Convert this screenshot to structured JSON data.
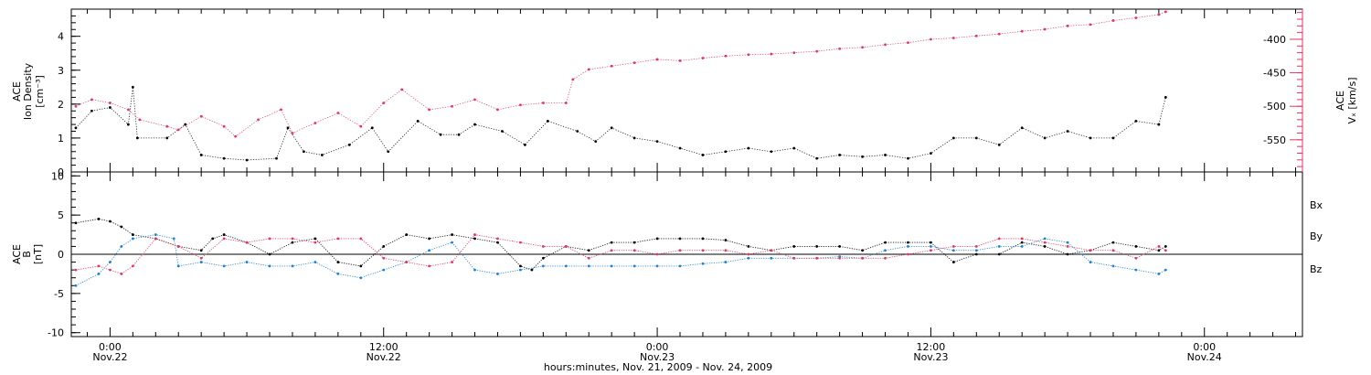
{
  "colors": {
    "black": "#000000",
    "pink": "#e8335f",
    "blue": "#1e7fd6"
  },
  "footer": {
    "xlabel": "hours:minutes, Nov. 21, 2009 - Nov. 24, 2009"
  },
  "x_ticks": [
    {
      "time": "0:00",
      "date": "Nov.22",
      "hour": 0
    },
    {
      "time": "12:00",
      "date": "Nov.22",
      "hour": 12
    },
    {
      "time": "0:00",
      "date": "Nov.23",
      "hour": 24
    },
    {
      "time": "12:00",
      "date": "Nov.23",
      "hour": 36
    },
    {
      "time": "0:00",
      "date": "Nov.24",
      "hour": 48
    }
  ],
  "chart_data": [
    {
      "type": "scatter",
      "panel": "top",
      "xlim_hours": [
        -1.7,
        52.3
      ],
      "left_axis": {
        "label": [
          "ACE",
          "Ion Density",
          "[cm⁻³]"
        ],
        "ylim": [
          0,
          4.8
        ],
        "ticks": [
          0,
          1,
          2,
          3,
          4
        ]
      },
      "right_axis": {
        "label": [
          "ACE",
          "Vₓ [km/s]"
        ],
        "ylim": [
          -598,
          -355
        ],
        "ticks": [
          -400,
          -450,
          -500,
          -550
        ],
        "color": "#e8335f"
      },
      "series": [
        {
          "color": "#000000",
          "axis": "left",
          "points": [
            [
              -1.5,
              1.3
            ],
            [
              -0.8,
              1.8
            ],
            [
              0.0,
              1.9
            ],
            [
              0.8,
              1.4
            ],
            [
              1.0,
              2.5
            ],
            [
              1.2,
              1.0
            ],
            [
              2.5,
              1.0
            ],
            [
              3.3,
              1.4
            ],
            [
              4.0,
              0.5
            ],
            [
              5.0,
              0.4
            ],
            [
              6.0,
              0.35
            ],
            [
              7.3,
              0.4
            ],
            [
              7.8,
              1.3
            ],
            [
              8.5,
              0.6
            ],
            [
              9.3,
              0.5
            ],
            [
              10.5,
              0.8
            ],
            [
              11.5,
              1.3
            ],
            [
              12.2,
              0.6
            ],
            [
              13.5,
              1.5
            ],
            [
              14.5,
              1.1
            ],
            [
              15.3,
              1.1
            ],
            [
              16.0,
              1.4
            ],
            [
              17.2,
              1.2
            ],
            [
              18.2,
              0.8
            ],
            [
              19.2,
              1.5
            ],
            [
              20.5,
              1.2
            ],
            [
              21.3,
              0.9
            ],
            [
              22.0,
              1.3
            ],
            [
              23.0,
              1.0
            ],
            [
              24.0,
              0.9
            ],
            [
              25.0,
              0.7
            ],
            [
              26.0,
              0.5
            ],
            [
              27.0,
              0.6
            ],
            [
              28.0,
              0.7
            ],
            [
              29.0,
              0.6
            ],
            [
              30.0,
              0.7
            ],
            [
              31.0,
              0.4
            ],
            [
              32.0,
              0.5
            ],
            [
              33.0,
              0.45
            ],
            [
              34.0,
              0.5
            ],
            [
              35.0,
              0.4
            ],
            [
              36.0,
              0.55
            ],
            [
              37.0,
              1.0
            ],
            [
              38.0,
              1.0
            ],
            [
              39.0,
              0.8
            ],
            [
              40.0,
              1.3
            ],
            [
              41.0,
              1.0
            ],
            [
              42.0,
              1.2
            ],
            [
              43.0,
              1.0
            ],
            [
              44.0,
              1.0
            ],
            [
              45.0,
              1.5
            ],
            [
              46.0,
              1.4
            ],
            [
              46.3,
              2.2
            ]
          ]
        },
        {
          "color": "#e8335f",
          "axis": "right",
          "points": [
            [
              -1.5,
              -500
            ],
            [
              -0.8,
              -490
            ],
            [
              0.0,
              -495
            ],
            [
              0.8,
              -505
            ],
            [
              1.3,
              -520
            ],
            [
              2.5,
              -530
            ],
            [
              3.0,
              -535
            ],
            [
              4.0,
              -515
            ],
            [
              5.0,
              -530
            ],
            [
              5.5,
              -545
            ],
            [
              6.5,
              -520
            ],
            [
              7.5,
              -505
            ],
            [
              8.0,
              -540
            ],
            [
              9.0,
              -525
            ],
            [
              10.0,
              -510
            ],
            [
              11.0,
              -530
            ],
            [
              12.0,
              -495
            ],
            [
              12.8,
              -475
            ],
            [
              14.0,
              -505
            ],
            [
              15.0,
              -500
            ],
            [
              16.0,
              -490
            ],
            [
              17.0,
              -505
            ],
            [
              18.0,
              -498
            ],
            [
              19.0,
              -495
            ],
            [
              20.0,
              -495
            ],
            [
              20.3,
              -460
            ],
            [
              21.0,
              -445
            ],
            [
              22.0,
              -440
            ],
            [
              23.0,
              -435
            ],
            [
              24.0,
              -430
            ],
            [
              25.0,
              -432
            ],
            [
              26.0,
              -428
            ],
            [
              27.0,
              -425
            ],
            [
              28.0,
              -423
            ],
            [
              29.0,
              -422
            ],
            [
              30.0,
              -420
            ],
            [
              31.0,
              -418
            ],
            [
              32.0,
              -414
            ],
            [
              33.0,
              -412
            ],
            [
              34.0,
              -408
            ],
            [
              35.0,
              -405
            ],
            [
              36.0,
              -400
            ],
            [
              37.0,
              -398
            ],
            [
              38.0,
              -395
            ],
            [
              39.0,
              -392
            ],
            [
              40.0,
              -388
            ],
            [
              41.0,
              -385
            ],
            [
              42.0,
              -380
            ],
            [
              43.0,
              -378
            ],
            [
              44.0,
              -372
            ],
            [
              45.0,
              -368
            ],
            [
              46.0,
              -363
            ],
            [
              46.3,
              -359
            ]
          ]
        }
      ]
    },
    {
      "type": "scatter",
      "panel": "bottom",
      "xlim_hours": [
        -1.7,
        52.3
      ],
      "left_axis": {
        "label": [
          "ACE",
          "B",
          "[nT]"
        ],
        "ylim": [
          -10.5,
          10.5
        ],
        "ticks": [
          -10,
          -5,
          0,
          5,
          10
        ]
      },
      "zero_line": true,
      "legend_position": "right",
      "series": [
        {
          "name": "Bx",
          "color": "#000000",
          "points": [
            [
              -1.5,
              4.0
            ],
            [
              -0.5,
              4.5
            ],
            [
              0.0,
              4.2
            ],
            [
              0.5,
              3.5
            ],
            [
              1.0,
              2.5
            ],
            [
              2.0,
              2.0
            ],
            [
              3.0,
              1.0
            ],
            [
              4.0,
              0.5
            ],
            [
              4.5,
              2.0
            ],
            [
              5.0,
              2.5
            ],
            [
              6.0,
              1.5
            ],
            [
              7.0,
              0.0
            ],
            [
              8.0,
              1.5
            ],
            [
              9.0,
              2.0
            ],
            [
              10.0,
              -1.0
            ],
            [
              11.0,
              -1.5
            ],
            [
              12.0,
              1.0
            ],
            [
              13.0,
              2.5
            ],
            [
              14.0,
              2.0
            ],
            [
              15.0,
              2.5
            ],
            [
              16.0,
              2.0
            ],
            [
              17.0,
              1.5
            ],
            [
              18.0,
              -1.5
            ],
            [
              18.5,
              -2.0
            ],
            [
              19.0,
              -0.5
            ],
            [
              20.0,
              1.0
            ],
            [
              21.0,
              0.5
            ],
            [
              22.0,
              1.5
            ],
            [
              23.0,
              1.5
            ],
            [
              24.0,
              2.0
            ],
            [
              25.0,
              2.0
            ],
            [
              26.0,
              2.0
            ],
            [
              27.0,
              1.8
            ],
            [
              28.0,
              1.0
            ],
            [
              29.0,
              0.5
            ],
            [
              30.0,
              1.0
            ],
            [
              31.0,
              1.0
            ],
            [
              32.0,
              1.0
            ],
            [
              33.0,
              0.5
            ],
            [
              34.0,
              1.5
            ],
            [
              35.0,
              1.5
            ],
            [
              36.0,
              1.5
            ],
            [
              37.0,
              -1.0
            ],
            [
              38.0,
              0.0
            ],
            [
              39.0,
              0.0
            ],
            [
              40.0,
              1.5
            ],
            [
              41.0,
              1.0
            ],
            [
              42.0,
              0.0
            ],
            [
              43.0,
              0.5
            ],
            [
              44.0,
              1.5
            ],
            [
              45.0,
              1.0
            ],
            [
              46.0,
              0.5
            ],
            [
              46.3,
              1.0
            ]
          ]
        },
        {
          "name": "By",
          "color": "#1e7fd6",
          "points": [
            [
              -1.5,
              -4.0
            ],
            [
              -0.5,
              -2.5
            ],
            [
              0.0,
              -1.0
            ],
            [
              0.5,
              1.0
            ],
            [
              1.0,
              2.0
            ],
            [
              2.0,
              2.5
            ],
            [
              2.8,
              2.0
            ],
            [
              3.0,
              -1.5
            ],
            [
              4.0,
              -1.0
            ],
            [
              5.0,
              -1.5
            ],
            [
              6.0,
              -1.0
            ],
            [
              7.0,
              -1.5
            ],
            [
              8.0,
              -1.5
            ],
            [
              9.0,
              -1.0
            ],
            [
              10.0,
              -2.5
            ],
            [
              11.0,
              -3.0
            ],
            [
              12.0,
              -2.0
            ],
            [
              13.0,
              -1.0
            ],
            [
              14.0,
              0.5
            ],
            [
              15.0,
              1.5
            ],
            [
              16.0,
              -2.0
            ],
            [
              17.0,
              -2.5
            ],
            [
              18.0,
              -2.0
            ],
            [
              19.0,
              -1.5
            ],
            [
              20.0,
              -1.5
            ],
            [
              21.0,
              -1.5
            ],
            [
              22.0,
              -1.5
            ],
            [
              23.0,
              -1.5
            ],
            [
              24.0,
              -1.5
            ],
            [
              25.0,
              -1.5
            ],
            [
              26.0,
              -1.2
            ],
            [
              27.0,
              -1.0
            ],
            [
              28.0,
              -0.5
            ],
            [
              29.0,
              -0.5
            ],
            [
              30.0,
              -0.5
            ],
            [
              31.0,
              -0.5
            ],
            [
              32.0,
              -0.3
            ],
            [
              33.0,
              -0.5
            ],
            [
              34.0,
              0.5
            ],
            [
              35.0,
              1.0
            ],
            [
              36.0,
              1.0
            ],
            [
              37.0,
              0.5
            ],
            [
              38.0,
              0.5
            ],
            [
              39.0,
              1.0
            ],
            [
              40.0,
              1.0
            ],
            [
              41.0,
              2.0
            ],
            [
              42.0,
              1.5
            ],
            [
              43.0,
              -1.0
            ],
            [
              44.0,
              -1.5
            ],
            [
              45.0,
              -2.0
            ],
            [
              46.0,
              -2.5
            ],
            [
              46.3,
              -2.0
            ]
          ]
        },
        {
          "name": "Bz",
          "color": "#e8335f",
          "points": [
            [
              -1.5,
              -2.0
            ],
            [
              -0.5,
              -1.5
            ],
            [
              0.0,
              -2.0
            ],
            [
              0.5,
              -2.5
            ],
            [
              1.0,
              -1.5
            ],
            [
              2.0,
              2.0
            ],
            [
              3.0,
              1.0
            ],
            [
              4.0,
              -0.5
            ],
            [
              5.0,
              2.0
            ],
            [
              6.0,
              1.5
            ],
            [
              7.0,
              2.0
            ],
            [
              8.0,
              2.0
            ],
            [
              9.0,
              1.5
            ],
            [
              10.0,
              2.0
            ],
            [
              11.0,
              2.0
            ],
            [
              12.0,
              -0.5
            ],
            [
              13.0,
              -1.0
            ],
            [
              14.0,
              -1.5
            ],
            [
              15.0,
              -1.0
            ],
            [
              16.0,
              2.5
            ],
            [
              17.0,
              2.0
            ],
            [
              18.0,
              1.5
            ],
            [
              19.0,
              1.0
            ],
            [
              20.0,
              1.0
            ],
            [
              21.0,
              -0.5
            ],
            [
              22.0,
              0.5
            ],
            [
              23.0,
              0.5
            ],
            [
              24.0,
              0.0
            ],
            [
              25.0,
              0.5
            ],
            [
              26.0,
              0.5
            ],
            [
              27.0,
              0.5
            ],
            [
              28.0,
              0.0
            ],
            [
              29.0,
              0.5
            ],
            [
              30.0,
              -0.5
            ],
            [
              31.0,
              -0.5
            ],
            [
              32.0,
              -0.5
            ],
            [
              33.0,
              -0.5
            ],
            [
              34.0,
              -0.5
            ],
            [
              35.0,
              0.0
            ],
            [
              36.0,
              0.5
            ],
            [
              37.0,
              1.0
            ],
            [
              38.0,
              1.0
            ],
            [
              39.0,
              2.0
            ],
            [
              40.0,
              2.0
            ],
            [
              41.0,
              1.5
            ],
            [
              42.0,
              1.0
            ],
            [
              43.0,
              0.5
            ],
            [
              44.0,
              0.5
            ],
            [
              45.0,
              -0.5
            ],
            [
              46.0,
              1.0
            ],
            [
              46.3,
              0.5
            ]
          ]
        }
      ]
    }
  ]
}
